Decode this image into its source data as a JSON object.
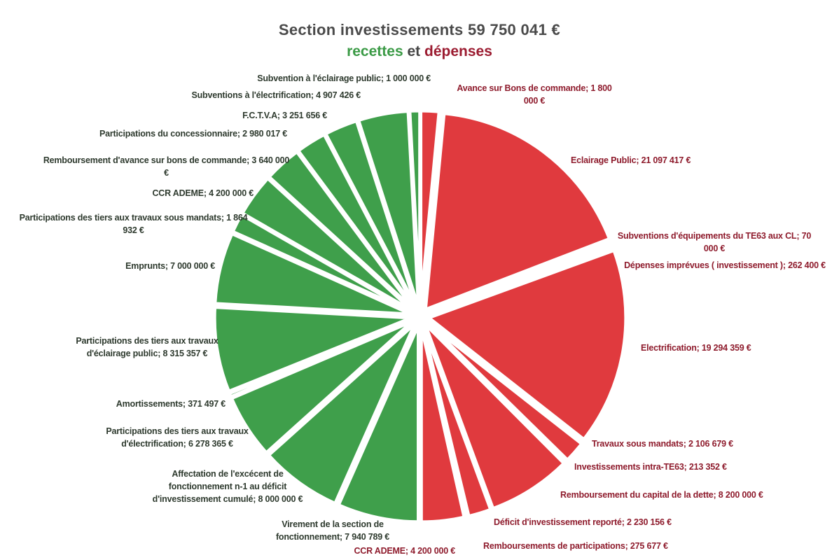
{
  "chart_data": {
    "type": "pie",
    "title": "Section investissements  59 750 041 €",
    "subtitle": [
      "recettes",
      "et",
      "dépenses"
    ],
    "categories": [
      "Avance sur Bons de commande;",
      "Eclairage Public;",
      "Subventions d'équipements du TE63 aux CL;",
      "Dépenses imprévues ( investissement );",
      "Electrification;",
      "Travaux sous mandats;",
      "Investissements intra-TE63;",
      "Remboursement du capital de la dette;",
      "Déficit d'investissement reporté;",
      "Remboursements de participations;",
      "CCR ADEME;",
      "Virement de la section de fonctionnement;",
      "Affectation de l'excécent de fonctionnement n-1 au déficit d'investissement cumulé;",
      "Participations des tiers aux travaux d'électrification;",
      "Amortissements;",
      "Participations des tiers aux travaux d'éclairage public;",
      "Emprunts;",
      "Participations des tiers aux travaux sous mandats;",
      "CCR ADEME;",
      "Remboursement d'avance sur bons de commande;",
      "Participations du concessionnaire;",
      "F.C.T.V.A;",
      "Subventions à l'électrification;",
      "Subvention à l'éclairage public;"
    ],
    "values": [
      1800000,
      21097417,
      70000,
      262400,
      19294359,
      2106679,
      213352,
      8200000,
      2230156,
      275677,
      4200000,
      7940789,
      8000000,
      6278365,
      371497,
      8315357,
      7000000,
      1864932,
      4200000,
      3640000,
      2980017,
      3251656,
      4907426,
      1000000
    ],
    "value_labels": [
      "1 800 000 €",
      "21 097 417 €",
      "70 000 €",
      "262 400 €",
      "19 294 359 €",
      "2 106 679 €",
      "213 352 €",
      "8 200 000 €",
      "2 230 156 €",
      "275 677 €",
      "4 200 000 €",
      "7 940 789 €",
      "8 000 000 €",
      "6 278 365 €",
      "371 497 €",
      "8 315 357 €",
      "7 000 000 €",
      "1 864 932 €",
      "4 200 000 €",
      "3 640 000 €",
      "2 980 017 €",
      "3 251 656 €",
      "4 907 426 €",
      "1 000 000 €"
    ],
    "colors": [
      "#e03a3e",
      "#e03a3e",
      "#e03a3e",
      "#e03a3e",
      "#e03a3e",
      "#e03a3e",
      "#e03a3e",
      "#e03a3e",
      "#e03a3e",
      "#e03a3e",
      "#e03a3e",
      "#3f9f4b",
      "#3f9f4b",
      "#3f9f4b",
      "#3f9f4b",
      "#3f9f4b",
      "#3f9f4b",
      "#3f9f4b",
      "#3f9f4b",
      "#3f9f4b",
      "#3f9f4b",
      "#3f9f4b",
      "#3f9f4b",
      "#3f9f4b"
    ]
  }
}
